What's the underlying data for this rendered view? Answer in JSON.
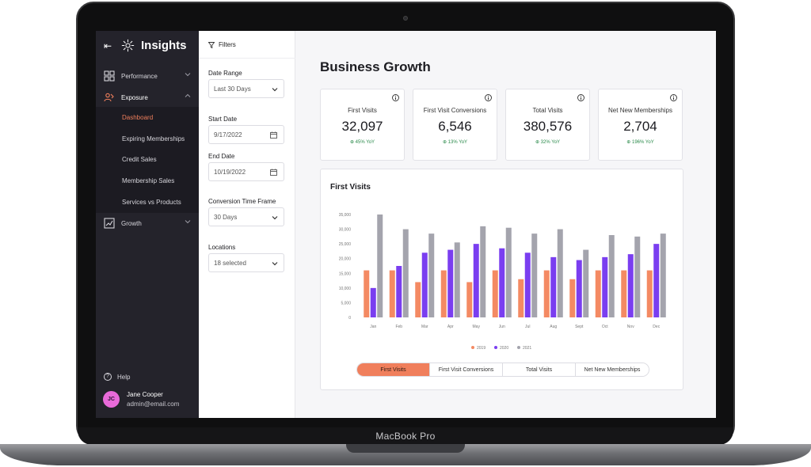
{
  "device": {
    "brand_label": "MacBook Pro"
  },
  "app": {
    "title": "Insights"
  },
  "sidebar": {
    "items": [
      {
        "label": "Performance",
        "icon": "grid-icon"
      },
      {
        "label": "Exposure",
        "icon": "people-icon"
      },
      {
        "label": "Growth",
        "icon": "chart-icon"
      }
    ],
    "sub_items": [
      {
        "label": "Dashboard",
        "active": true
      },
      {
        "label": "Expiring Memberships",
        "active": false
      },
      {
        "label": "Credit Sales",
        "active": false
      },
      {
        "label": "Membership Sales",
        "active": false
      },
      {
        "label": "Services vs Products",
        "active": false
      }
    ],
    "help_label": "Help",
    "user": {
      "initials": "JC",
      "name": "Jane Cooper",
      "email": "admin@email.com"
    }
  },
  "filters": {
    "title": "Filters",
    "date_range": {
      "label": "Date Range",
      "value": "Last 30 Days"
    },
    "start_date": {
      "label": "Start Date",
      "value": "9/17/2022"
    },
    "end_date": {
      "label": "End Date",
      "value": "10/19/2022"
    },
    "conversion": {
      "label": "Conversion Time Frame",
      "value": "30 Days"
    },
    "locations": {
      "label": "Locations",
      "value": "18 selected"
    }
  },
  "main": {
    "title": "Business Growth",
    "kpis": [
      {
        "label": "First Visits",
        "value": "32,097",
        "trend": "45% YoY"
      },
      {
        "label": "First Visit Conversions",
        "value": "6,546",
        "trend": "13% YoY"
      },
      {
        "label": "Total Visits",
        "value": "380,576",
        "trend": "32% YoY"
      },
      {
        "label": "Net New Memberships",
        "value": "2,704",
        "trend": "196% YoY"
      }
    ],
    "chart_title": "First Visits",
    "tabs": [
      {
        "label": "First Visits",
        "active": true
      },
      {
        "label": "First Visit Conversions",
        "active": false
      },
      {
        "label": "Total Visits",
        "active": false
      },
      {
        "label": "Net New Memberships",
        "active": false
      }
    ]
  },
  "colors": {
    "accent": "#f07f5c",
    "series_2019": "#f48a63",
    "series_2020": "#7a3ef0",
    "series_2021": "#a4a4ad",
    "sidebar": "#24232b"
  },
  "chart_data": {
    "type": "bar",
    "title": "First Visits",
    "categories": [
      "Jan",
      "Feb",
      "Mar",
      "Apr",
      "May",
      "Jun",
      "Jul",
      "Aug",
      "Sept",
      "Oct",
      "Nov",
      "Dec"
    ],
    "yticks": [
      "0",
      "5,000",
      "10,000",
      "15,000",
      "20,000",
      "25,000",
      "30,000",
      "35,000"
    ],
    "ylim": [
      0,
      35000
    ],
    "series": [
      {
        "name": "2019",
        "values": [
          16000,
          16000,
          12000,
          16000,
          12000,
          16000,
          13000,
          16000,
          13000,
          16000,
          16000,
          16000
        ]
      },
      {
        "name": "2020",
        "values": [
          10000,
          17500,
          22000,
          23000,
          25000,
          23500,
          22000,
          20500,
          19500,
          20500,
          21500,
          25000
        ]
      },
      {
        "name": "2021",
        "values": [
          35000,
          30000,
          28500,
          25500,
          31000,
          30500,
          28500,
          30000,
          23000,
          28000,
          27500,
          28500
        ]
      }
    ],
    "legend_position": "bottom",
    "grid": false
  }
}
